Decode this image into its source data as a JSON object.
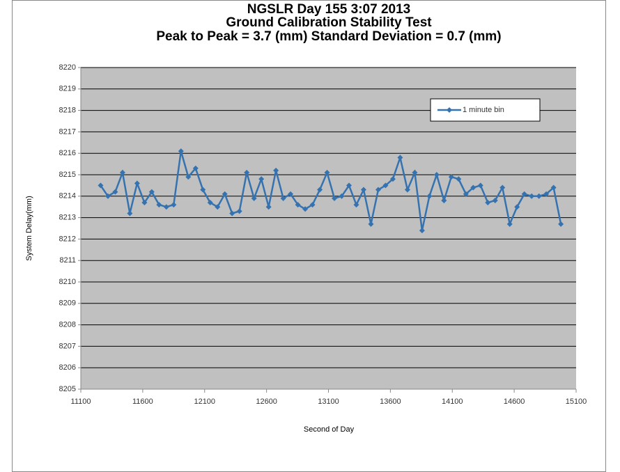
{
  "chart_data": {
    "type": "line",
    "title": [
      "NGSLR Day 155 3:07 2013",
      "Ground Calibration Stability Test",
      "Peak to Peak = 3.7 (mm) Standard Deviation = 0.7 (mm)"
    ],
    "x_label": "Second of Day",
    "y_label": "System Delay(mm)",
    "x": [
      11260,
      11319,
      11378,
      11437,
      11496,
      11555,
      11614,
      11673,
      11732,
      11791,
      11850,
      11909,
      11968,
      12027,
      12086,
      12145,
      12204,
      12263,
      12322,
      12381,
      12440,
      12499,
      12558,
      12617,
      12676,
      12735,
      12794,
      12853,
      12912,
      12971,
      13030,
      13089,
      13148,
      13207,
      13266,
      13325,
      13384,
      13443,
      13502,
      13561,
      13620,
      13679,
      13738,
      13797,
      13856,
      13915,
      13974,
      14033,
      14092,
      14151,
      14210,
      14269,
      14328,
      14387,
      14446,
      14505,
      14564,
      14623,
      14682,
      14741,
      14800,
      14859,
      14918,
      14977
    ],
    "series": [
      {
        "name": "1 minute bin",
        "color": "#3572b0",
        "values": [
          8214.5,
          8214.0,
          8214.2,
          8215.1,
          8213.2,
          8214.6,
          8213.7,
          8214.2,
          8213.6,
          8213.5,
          8213.6,
          8216.1,
          8214.9,
          8215.3,
          8214.3,
          8213.7,
          8213.5,
          8214.1,
          8213.2,
          8213.3,
          8215.1,
          8213.9,
          8214.8,
          8213.5,
          8215.2,
          8213.9,
          8214.1,
          8213.6,
          8213.4,
          8213.6,
          8214.3,
          8215.1,
          8213.9,
          8214.0,
          8214.5,
          8213.6,
          8214.3,
          8212.7,
          8214.3,
          8214.5,
          8214.8,
          8215.8,
          8214.3,
          8215.1,
          8212.4,
          8214.0,
          8215.0,
          8213.8,
          8214.9,
          8214.8,
          8214.1,
          8214.4,
          8214.5,
          8213.7,
          8213.8,
          8214.4,
          8212.7,
          8213.5,
          8214.1,
          8214.0,
          8214.0,
          8214.1,
          8214.4,
          8212.7
        ]
      }
    ],
    "xlim": [
      11100,
      15100
    ],
    "xticks": [
      11100,
      11600,
      12100,
      12600,
      13100,
      13600,
      14100,
      14600,
      15100
    ],
    "ylim": [
      8205,
      8220
    ],
    "yticks": [
      8205,
      8206,
      8207,
      8208,
      8209,
      8210,
      8211,
      8212,
      8213,
      8214,
      8215,
      8216,
      8217,
      8218,
      8219,
      8220
    ],
    "grid": true,
    "legend": "upper right",
    "plot_background": "#c0c0c0"
  }
}
